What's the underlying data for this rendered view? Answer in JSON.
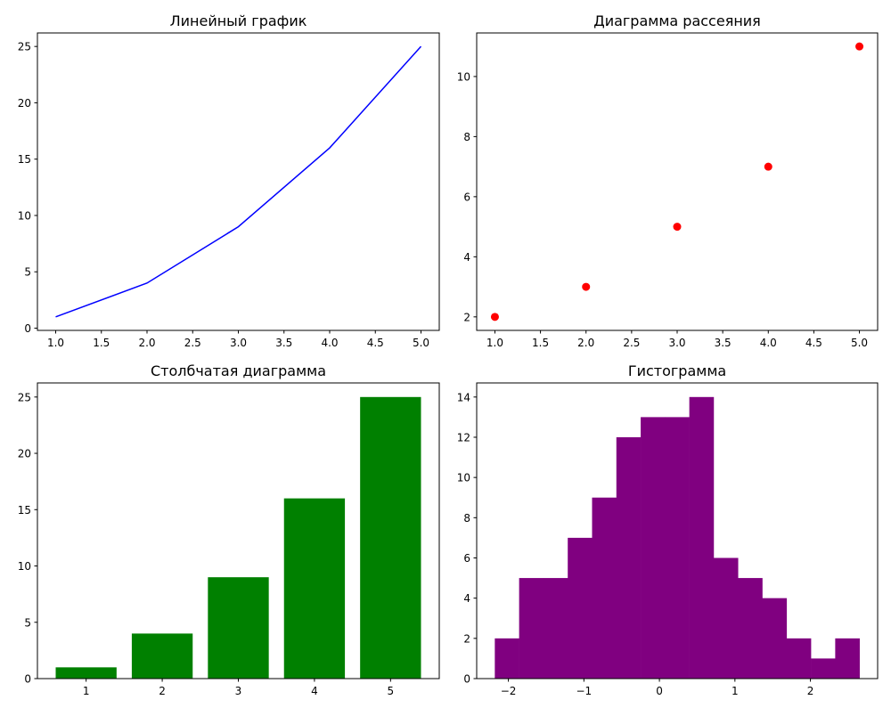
{
  "chart_data": [
    {
      "type": "line",
      "title": "Линейный график",
      "x": [
        1,
        2,
        3,
        4,
        5
      ],
      "y": [
        1,
        4,
        9,
        16,
        25
      ],
      "color": "#0000ff",
      "xlim": [
        0.8,
        5.2
      ],
      "ylim": [
        -0.2,
        26.2
      ],
      "xticks": [
        1.0,
        1.5,
        2.0,
        2.5,
        3.0,
        3.5,
        4.0,
        4.5,
        5.0
      ],
      "xtick_labels": [
        "1.0",
        "1.5",
        "2.0",
        "2.5",
        "3.0",
        "3.5",
        "4.0",
        "4.5",
        "5.0"
      ],
      "yticks": [
        0,
        5,
        10,
        15,
        20,
        25
      ],
      "ytick_labels": [
        "0",
        "5",
        "10",
        "15",
        "20",
        "25"
      ],
      "grid": false
    },
    {
      "type": "scatter",
      "title": "Диаграмма рассеяния",
      "x": [
        1,
        2,
        3,
        4,
        5
      ],
      "y": [
        2,
        3,
        5,
        7,
        11
      ],
      "color": "#ff0000",
      "xlim": [
        0.8,
        5.2
      ],
      "ylim": [
        1.55,
        11.45
      ],
      "xticks": [
        1.0,
        1.5,
        2.0,
        2.5,
        3.0,
        3.5,
        4.0,
        4.5,
        5.0
      ],
      "xtick_labels": [
        "1.0",
        "1.5",
        "2.0",
        "2.5",
        "3.0",
        "3.5",
        "4.0",
        "4.5",
        "5.0"
      ],
      "yticks": [
        2,
        4,
        6,
        8,
        10
      ],
      "ytick_labels": [
        "2",
        "4",
        "6",
        "8",
        "10"
      ],
      "grid": false
    },
    {
      "type": "bar",
      "title": "Столбчатая диаграмма",
      "categories": [
        1,
        2,
        3,
        4,
        5
      ],
      "values": [
        1,
        4,
        9,
        16,
        25
      ],
      "bar_width": 0.8,
      "color": "#008000",
      "xlim": [
        0.36,
        5.64
      ],
      "ylim": [
        0,
        26.25
      ],
      "xticks": [
        1,
        2,
        3,
        4,
        5
      ],
      "xtick_labels": [
        "1",
        "2",
        "3",
        "4",
        "5"
      ],
      "yticks": [
        0,
        5,
        10,
        15,
        20,
        25
      ],
      "ytick_labels": [
        "0",
        "5",
        "10",
        "15",
        "20",
        "25"
      ],
      "grid": false
    },
    {
      "type": "bar",
      "subtype": "histogram",
      "title": "Гистограмма",
      "bin_range": [
        -2.18,
        2.65
      ],
      "counts": [
        2,
        5,
        5,
        7,
        9,
        12,
        13,
        13,
        14,
        6,
        5,
        4,
        2,
        1,
        2
      ],
      "color": "#800080",
      "xlim": [
        -2.42,
        2.89
      ],
      "ylim": [
        0,
        14.7
      ],
      "xticks": [
        -2,
        -1,
        0,
        1,
        2
      ],
      "xtick_labels": [
        "−2",
        "−1",
        "0",
        "1",
        "2"
      ],
      "yticks": [
        0,
        2,
        4,
        6,
        8,
        10,
        12,
        14
      ],
      "ytick_labels": [
        "0",
        "2",
        "4",
        "6",
        "8",
        "10",
        "12",
        "14"
      ],
      "grid": false
    }
  ]
}
